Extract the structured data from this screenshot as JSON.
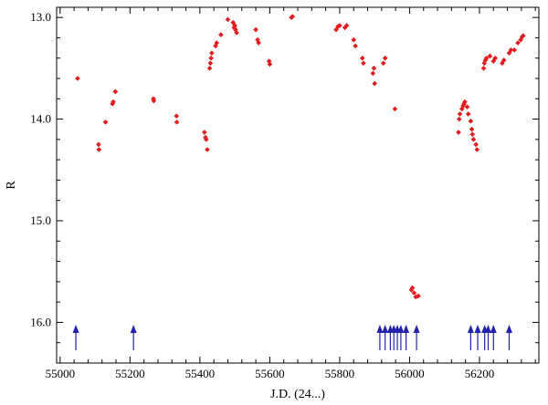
{
  "chart_data": {
    "type": "scatter",
    "title": "",
    "xlabel": "J.D. (24...)",
    "ylabel": "R",
    "xlim": [
      54990,
      56370
    ],
    "ylim": [
      12.9,
      16.4
    ],
    "y_inverted": true,
    "x_ticks": [
      55000,
      55200,
      55400,
      55600,
      55800,
      56000,
      56200
    ],
    "y_ticks": [
      13.0,
      14.0,
      15.0,
      16.0
    ],
    "y_tick_labels": [
      "13.0",
      "14.0",
      "15.0",
      "16.0"
    ],
    "grid": false,
    "series": [
      {
        "marker": "diamond",
        "color": "#e41a1c",
        "points": [
          [
            55050,
            13.6
          ],
          [
            55110,
            14.25
          ],
          [
            55111,
            14.3
          ],
          [
            55130,
            14.03
          ],
          [
            55150,
            13.85
          ],
          [
            55152,
            13.83
          ],
          [
            55158,
            13.73
          ],
          [
            55267,
            13.8
          ],
          [
            55268,
            13.82
          ],
          [
            55333,
            13.97
          ],
          [
            55334,
            14.03
          ],
          [
            55413,
            14.13
          ],
          [
            55416,
            14.18
          ],
          [
            55418,
            14.2
          ],
          [
            55421,
            14.3
          ],
          [
            55428,
            13.5
          ],
          [
            55430,
            13.45
          ],
          [
            55432,
            13.4
          ],
          [
            55434,
            13.35
          ],
          [
            55445,
            13.28
          ],
          [
            55448,
            13.25
          ],
          [
            55460,
            13.17
          ],
          [
            55480,
            13.02
          ],
          [
            55495,
            13.05
          ],
          [
            55498,
            13.1
          ],
          [
            55500,
            13.08
          ],
          [
            55502,
            13.12
          ],
          [
            55505,
            13.15
          ],
          [
            55560,
            13.12
          ],
          [
            55565,
            13.22
          ],
          [
            55568,
            13.25
          ],
          [
            55598,
            13.43
          ],
          [
            55600,
            13.46
          ],
          [
            55662,
            13.0
          ],
          [
            55665,
            12.99
          ],
          [
            55790,
            13.12
          ],
          [
            55795,
            13.09
          ],
          [
            55800,
            13.08
          ],
          [
            55815,
            13.1
          ],
          [
            55820,
            13.08
          ],
          [
            55840,
            13.22
          ],
          [
            55845,
            13.28
          ],
          [
            55865,
            13.4
          ],
          [
            55868,
            13.45
          ],
          [
            55895,
            13.55
          ],
          [
            55898,
            13.5
          ],
          [
            55900,
            13.65
          ],
          [
            55925,
            13.45
          ],
          [
            55930,
            13.4
          ],
          [
            55958,
            13.9
          ],
          [
            56005,
            15.68
          ],
          [
            56008,
            15.66
          ],
          [
            56013,
            15.71
          ],
          [
            56018,
            15.75
          ],
          [
            56025,
            15.74
          ],
          [
            56140,
            14.13
          ],
          [
            56142,
            14.0
          ],
          [
            56144,
            13.95
          ],
          [
            56150,
            13.9
          ],
          [
            56153,
            13.87
          ],
          [
            56156,
            13.85
          ],
          [
            56158,
            13.83
          ],
          [
            56165,
            13.88
          ],
          [
            56168,
            13.95
          ],
          [
            56175,
            14.02
          ],
          [
            56178,
            14.1
          ],
          [
            56180,
            14.15
          ],
          [
            56183,
            14.2
          ],
          [
            56190,
            14.25
          ],
          [
            56193,
            14.3
          ],
          [
            56212,
            13.5
          ],
          [
            56214,
            13.45
          ],
          [
            56217,
            13.42
          ],
          [
            56220,
            13.4
          ],
          [
            56230,
            13.38
          ],
          [
            56240,
            13.43
          ],
          [
            56245,
            13.4
          ],
          [
            56265,
            13.45
          ],
          [
            56270,
            13.42
          ],
          [
            56285,
            13.35
          ],
          [
            56290,
            13.32
          ],
          [
            56300,
            13.32
          ],
          [
            56310,
            13.25
          ],
          [
            56318,
            13.22
          ],
          [
            56322,
            13.19
          ],
          [
            56325,
            13.18
          ]
        ]
      }
    ],
    "arrows": {
      "color": "#2222aa",
      "x": [
        55045,
        55210,
        55915,
        55930,
        55945,
        55955,
        55965,
        55975,
        55990,
        56020,
        56175,
        56195,
        56215,
        56225,
        56240,
        56285
      ]
    }
  }
}
